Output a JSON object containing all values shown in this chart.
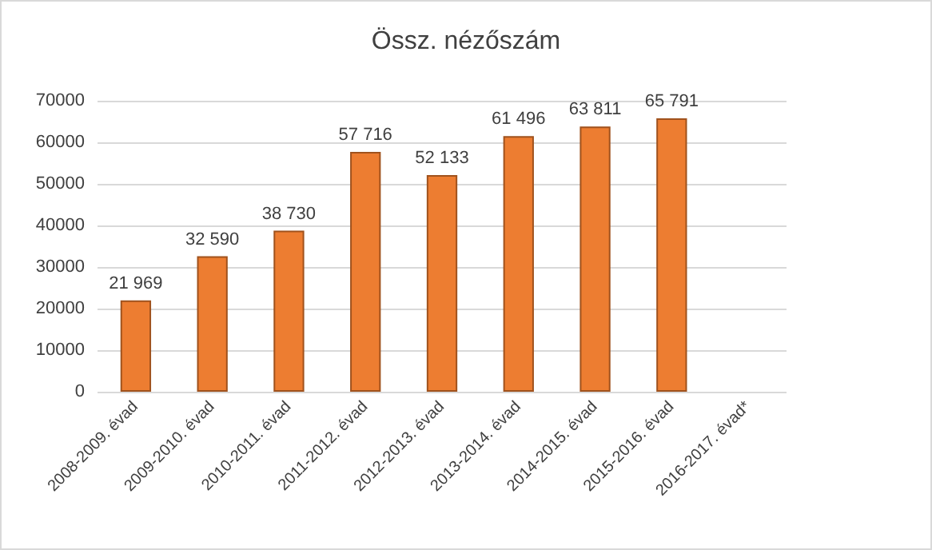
{
  "chart_data": {
    "type": "bar",
    "title": "Össz. nézőszám",
    "categories": [
      "2008-2009. évad",
      "2009-2010. évad",
      "2010-2011. évad",
      "2011-2012. évad",
      "2012-2013. évad",
      "2013-2014. évad",
      "2014-2015. évad",
      "2015-2016. évad",
      "2016-2017. évad*"
    ],
    "values": [
      21969,
      32590,
      38730,
      57716,
      52133,
      61496,
      63811,
      65791,
      null
    ],
    "value_labels": [
      "21 969",
      "32 590",
      "38 730",
      "57 716",
      "52 133",
      "61 496",
      "63 811",
      "65 791",
      null
    ],
    "color": "#ed7d31",
    "ylim": [
      0,
      70000
    ],
    "yticks": [
      0,
      10000,
      20000,
      30000,
      40000,
      50000,
      60000,
      70000
    ],
    "grid": "y"
  }
}
